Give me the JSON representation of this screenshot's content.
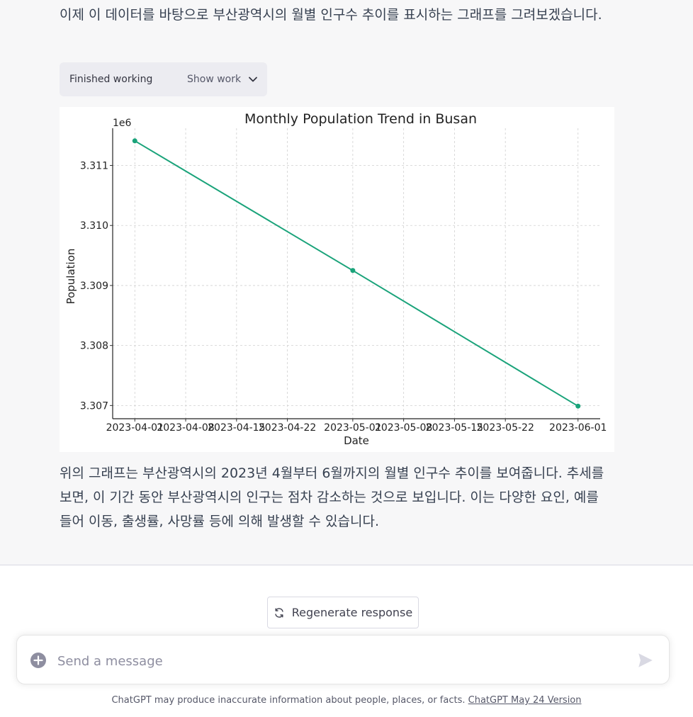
{
  "conversation": {
    "intro_text": "이제 이 데이터를 바탕으로 부산광역시의 월별 인구수 추이를 표시하는 그래프를 그려보겠습니다.",
    "tool": {
      "status": "Finished working",
      "toggle_label": "Show work"
    },
    "summary_text": "위의 그래프는 부산광역시의 2023년 4월부터 6월까지의 월별 인구수 추이를 보여줍니다. 추세를 보면, 이 기간 동안 부산광역시의 인구는 점차 감소하는 것으로 보입니다. 이는 다양한 요인, 예를 들어 이동, 출생률, 사망률 등에 의해 발생할 수 있습니다."
  },
  "chart_data": {
    "type": "line",
    "title": "Monthly Population Trend in Busan",
    "xlabel": "Date",
    "ylabel": "Population",
    "y_offset_label": "1e6",
    "x": [
      "2023-04-01",
      "2023-05-01",
      "2023-06-01"
    ],
    "series": [
      {
        "values": [
          3.31141,
          3.30925,
          3.30699
        ],
        "color": "#1aa37a"
      }
    ],
    "x_ticks": [
      "2023-04-01",
      "2023-04-08",
      "2023-04-15",
      "2023-04-22",
      "2023-05-01",
      "2023-05-08",
      "2023-05-15",
      "2023-05-22",
      "2023-06-01"
    ],
    "y_ticks": [
      3.307,
      3.308,
      3.309,
      3.31,
      3.311
    ],
    "ylim": [
      3.30678,
      3.31162
    ],
    "grid": true,
    "legend": "none"
  },
  "actions": {
    "regenerate_label": "Regenerate response"
  },
  "composer": {
    "placeholder": "Send a message"
  },
  "footer": {
    "disclaimer": "ChatGPT may produce inaccurate information about people, places, or facts.",
    "version_link": "ChatGPT May 24 Version"
  },
  "colors": {
    "accent": "#1aa37a",
    "message_bg": "#f7f7f8"
  }
}
